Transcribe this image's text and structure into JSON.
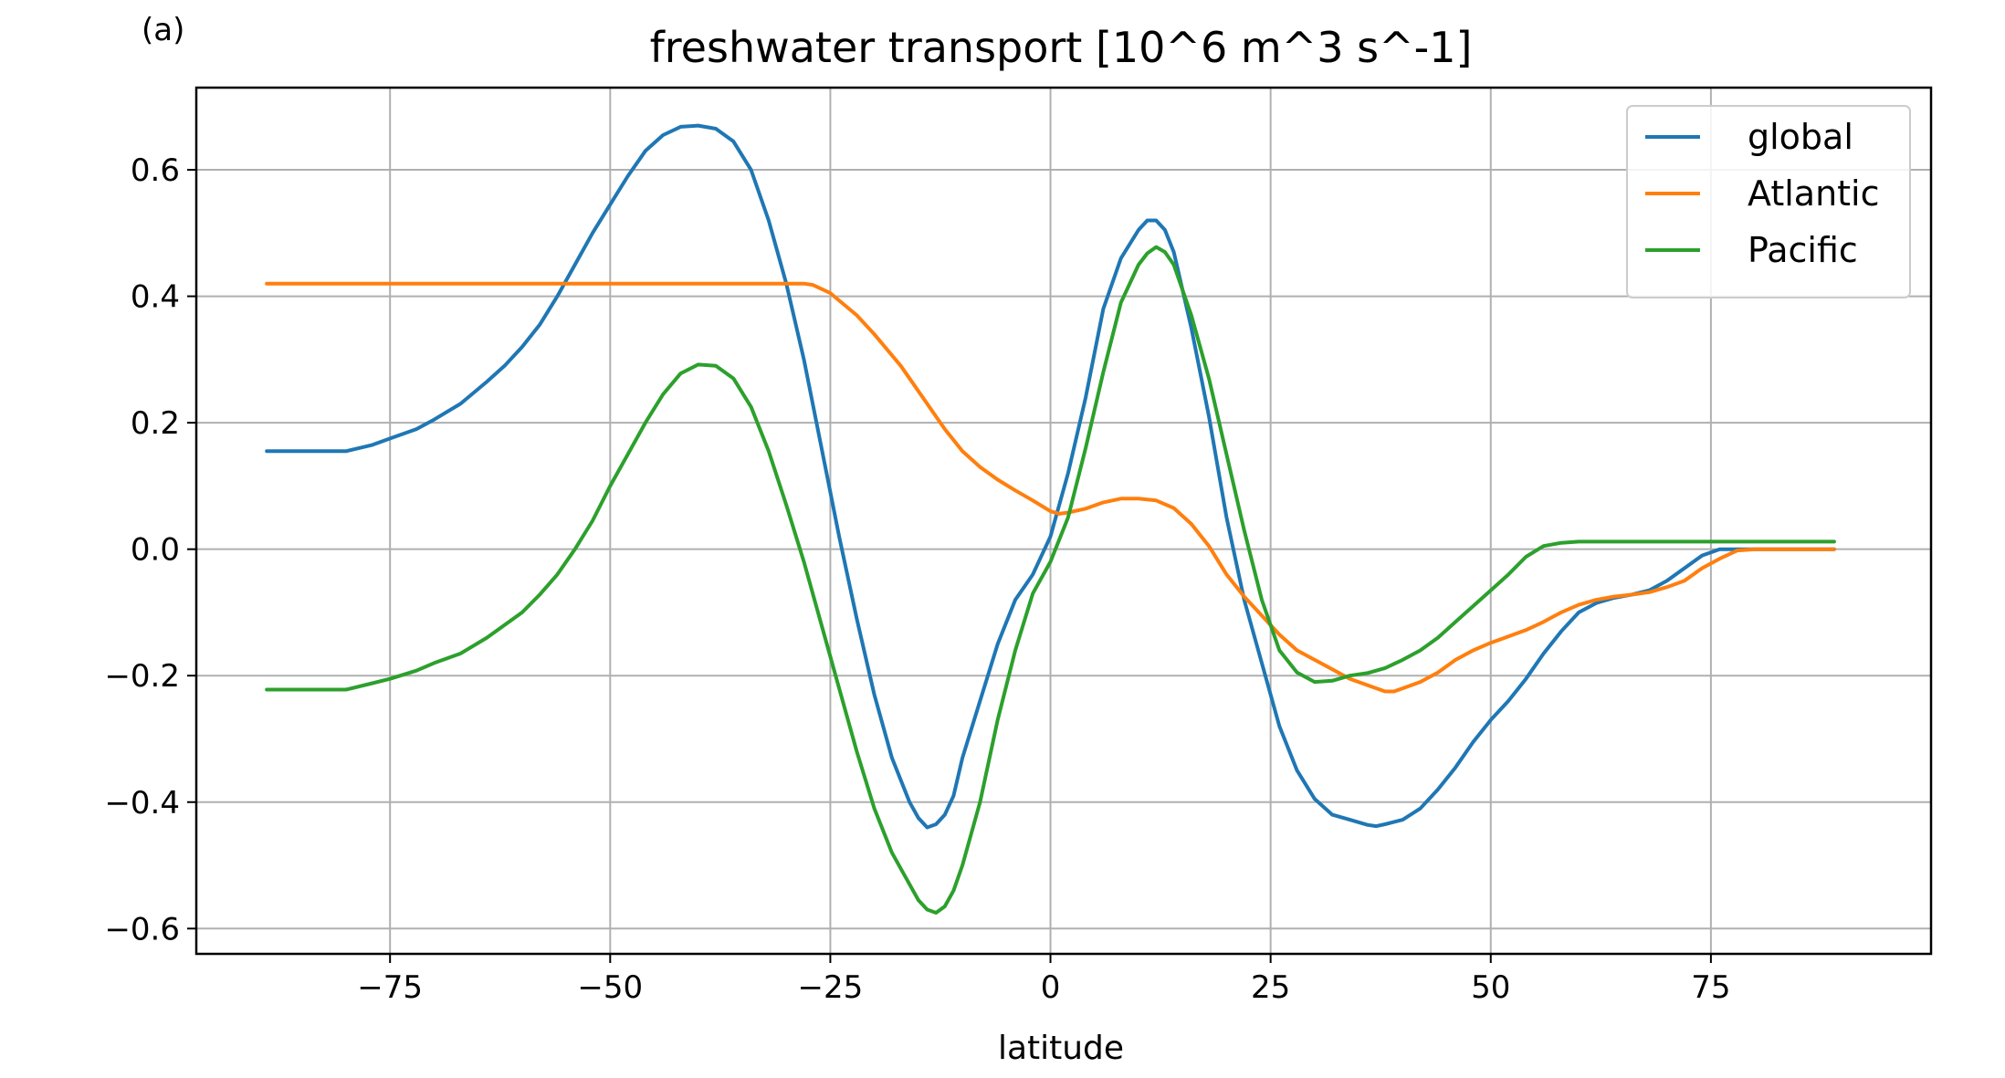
{
  "chart_data": {
    "type": "line",
    "panel_label": "(a)",
    "title": "freshwater transport [10^6 m^3 s^-1]",
    "xlabel": "latitude",
    "ylabel": "",
    "xlim": [
      -97,
      100
    ],
    "ylim": [
      -0.64,
      0.73
    ],
    "xticks": [
      -75,
      -50,
      -25,
      0,
      25,
      50,
      75
    ],
    "xtick_labels": [
      "−75",
      "−50",
      "−25",
      "0",
      "25",
      "50",
      "75"
    ],
    "yticks": [
      -0.6,
      -0.4,
      -0.2,
      0.0,
      0.2,
      0.4,
      0.6
    ],
    "ytick_labels": [
      "−0.6",
      "−0.4",
      "−0.2",
      "0.0",
      "0.2",
      "0.4",
      "0.6"
    ],
    "grid": true,
    "legend": "top-right",
    "series": [
      {
        "name": "global",
        "color": "#1f77b4",
        "x": [
          -89,
          -85,
          -80,
          -77,
          -75,
          -72,
          -70,
          -67,
          -64,
          -62,
          -60,
          -58,
          -56,
          -54,
          -52,
          -50,
          -48,
          -46,
          -44,
          -42,
          -40,
          -38,
          -36,
          -34,
          -32,
          -30,
          -28,
          -26,
          -24,
          -22,
          -20,
          -18,
          -16,
          -15,
          -14,
          -13,
          -12,
          -11,
          -10,
          -8,
          -6,
          -4,
          -2,
          0,
          2,
          4,
          6,
          8,
          10,
          11,
          12,
          13,
          14,
          16,
          18,
          20,
          22,
          24,
          26,
          28,
          30,
          32,
          34,
          36,
          37,
          38,
          40,
          42,
          44,
          46,
          48,
          50,
          52,
          54,
          56,
          58,
          60,
          62,
          64,
          66,
          68,
          70,
          72,
          74,
          76,
          78,
          80,
          85,
          89
        ],
        "y": [
          0.155,
          0.155,
          0.155,
          0.165,
          0.175,
          0.19,
          0.205,
          0.23,
          0.265,
          0.29,
          0.32,
          0.355,
          0.4,
          0.45,
          0.5,
          0.545,
          0.59,
          0.63,
          0.655,
          0.668,
          0.67,
          0.665,
          0.645,
          0.6,
          0.52,
          0.42,
          0.3,
          0.16,
          0.02,
          -0.11,
          -0.23,
          -0.33,
          -0.4,
          -0.425,
          -0.44,
          -0.435,
          -0.42,
          -0.39,
          -0.33,
          -0.24,
          -0.15,
          -0.08,
          -0.04,
          0.02,
          0.12,
          0.24,
          0.38,
          0.46,
          0.505,
          0.52,
          0.52,
          0.505,
          0.47,
          0.35,
          0.21,
          0.05,
          -0.08,
          -0.18,
          -0.28,
          -0.35,
          -0.395,
          -0.42,
          -0.428,
          -0.436,
          -0.438,
          -0.435,
          -0.428,
          -0.41,
          -0.38,
          -0.345,
          -0.305,
          -0.27,
          -0.24,
          -0.205,
          -0.165,
          -0.13,
          -0.1,
          -0.085,
          -0.077,
          -0.072,
          -0.065,
          -0.05,
          -0.03,
          -0.01,
          0.0,
          0.0,
          0.0,
          0.0,
          0.0
        ]
      },
      {
        "name": "Atlantic",
        "color": "#ff7f0e",
        "x": [
          -89,
          -80,
          -70,
          -60,
          -50,
          -40,
          -30,
          -28,
          -27,
          -25,
          -22,
          -20,
          -17,
          -14,
          -12,
          -10,
          -8,
          -6,
          -4,
          -2,
          0,
          1,
          2,
          4,
          6,
          8,
          10,
          12,
          14,
          16,
          18,
          20,
          22,
          24,
          26,
          28,
          30,
          32,
          34,
          36,
          38,
          39,
          40,
          42,
          44,
          46,
          48,
          50,
          52,
          54,
          56,
          58,
          60,
          62,
          64,
          66,
          68,
          70,
          72,
          74,
          76,
          78,
          80,
          85,
          89
        ],
        "y": [
          0.42,
          0.42,
          0.42,
          0.42,
          0.42,
          0.42,
          0.42,
          0.42,
          0.418,
          0.405,
          0.37,
          0.34,
          0.29,
          0.23,
          0.19,
          0.155,
          0.13,
          0.11,
          0.093,
          0.077,
          0.06,
          0.056,
          0.058,
          0.064,
          0.074,
          0.08,
          0.08,
          0.077,
          0.065,
          0.04,
          0.005,
          -0.04,
          -0.075,
          -0.105,
          -0.135,
          -0.16,
          -0.175,
          -0.19,
          -0.205,
          -0.215,
          -0.225,
          -0.225,
          -0.22,
          -0.21,
          -0.195,
          -0.175,
          -0.16,
          -0.148,
          -0.138,
          -0.128,
          -0.115,
          -0.1,
          -0.088,
          -0.08,
          -0.075,
          -0.072,
          -0.068,
          -0.06,
          -0.05,
          -0.03,
          -0.015,
          -0.002,
          0.0,
          0.0,
          0.0
        ]
      },
      {
        "name": "Pacific",
        "color": "#2ca02c",
        "x": [
          -89,
          -85,
          -80,
          -77,
          -75,
          -72,
          -70,
          -67,
          -64,
          -62,
          -60,
          -58,
          -56,
          -54,
          -52,
          -50,
          -48,
          -46,
          -44,
          -42,
          -40,
          -38,
          -36,
          -34,
          -32,
          -30,
          -28,
          -26,
          -24,
          -22,
          -20,
          -18,
          -16,
          -15,
          -14,
          -13,
          -12,
          -11,
          -10,
          -8,
          -6,
          -4,
          -2,
          0,
          2,
          4,
          6,
          8,
          10,
          11,
          12,
          13,
          14,
          16,
          18,
          20,
          22,
          24,
          26,
          28,
          30,
          32,
          34,
          36,
          38,
          40,
          42,
          44,
          46,
          48,
          50,
          52,
          54,
          56,
          58,
          60,
          62,
          64,
          66,
          70,
          75,
          80,
          85,
          89
        ],
        "y": [
          -0.222,
          -0.222,
          -0.222,
          -0.212,
          -0.205,
          -0.192,
          -0.18,
          -0.165,
          -0.14,
          -0.12,
          -0.1,
          -0.072,
          -0.04,
          0.0,
          0.045,
          0.1,
          0.15,
          0.2,
          0.245,
          0.278,
          0.292,
          0.29,
          0.27,
          0.225,
          0.155,
          0.07,
          -0.02,
          -0.12,
          -0.22,
          -0.32,
          -0.41,
          -0.48,
          -0.53,
          -0.555,
          -0.57,
          -0.575,
          -0.565,
          -0.54,
          -0.5,
          -0.4,
          -0.27,
          -0.16,
          -0.07,
          -0.02,
          0.05,
          0.16,
          0.28,
          0.39,
          0.45,
          0.468,
          0.478,
          0.47,
          0.45,
          0.37,
          0.27,
          0.15,
          0.03,
          -0.08,
          -0.16,
          -0.195,
          -0.21,
          -0.208,
          -0.2,
          -0.196,
          -0.188,
          -0.175,
          -0.16,
          -0.14,
          -0.115,
          -0.09,
          -0.065,
          -0.04,
          -0.012,
          0.005,
          0.01,
          0.012,
          0.012,
          0.012,
          0.012,
          0.012,
          0.012,
          0.012,
          0.012,
          0.012
        ]
      }
    ]
  }
}
